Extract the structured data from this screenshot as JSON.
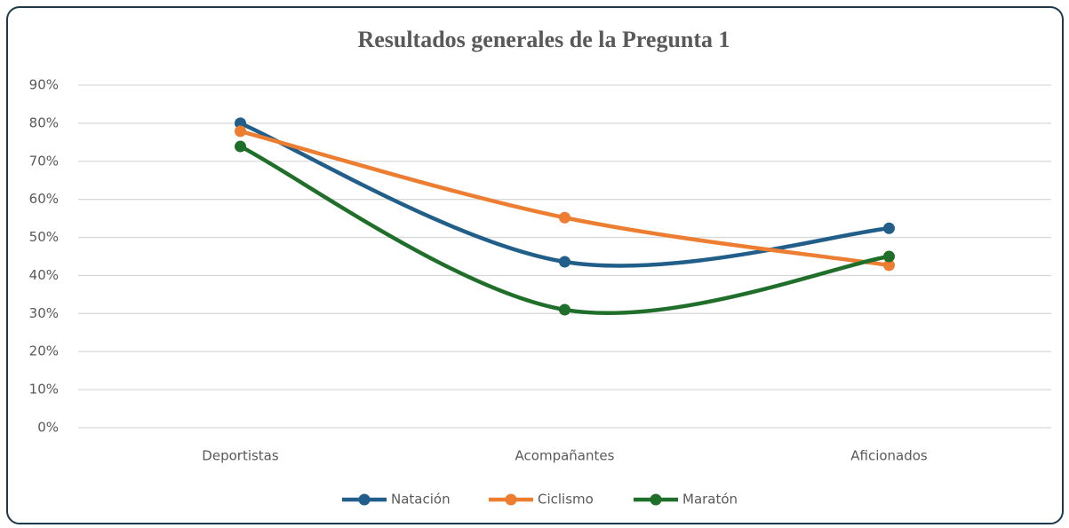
{
  "chart_data": {
    "type": "line",
    "title": "Resultados generales de la Pregunta 1",
    "categories": [
      "Deportistas",
      "Acompañantes",
      "Aficionados"
    ],
    "series": [
      {
        "name": "Natación",
        "color": "#215f8a",
        "values": [
          80,
          43.6,
          52.4
        ]
      },
      {
        "name": "Ciclismo",
        "color": "#ed7d31",
        "values": [
          77.9,
          55.2,
          42.7
        ]
      },
      {
        "name": "Maratón",
        "color": "#1f6f2a",
        "values": [
          73.9,
          31,
          45
        ]
      }
    ],
    "smooth": true,
    "ylim": [
      0,
      90
    ],
    "yticks": [
      {
        "value": 0,
        "label": "0%"
      },
      {
        "value": 10,
        "label": "10%"
      },
      {
        "value": 20,
        "label": "20%"
      },
      {
        "value": 30,
        "label": "30%"
      },
      {
        "value": 40,
        "label": "40%"
      },
      {
        "value": 50,
        "label": "50%"
      },
      {
        "value": 60,
        "label": "60%"
      },
      {
        "value": 70,
        "label": "70%"
      },
      {
        "value": 80,
        "label": "80%"
      },
      {
        "value": 90,
        "label": "90%"
      }
    ],
    "grid": true,
    "legend": "bottom"
  }
}
